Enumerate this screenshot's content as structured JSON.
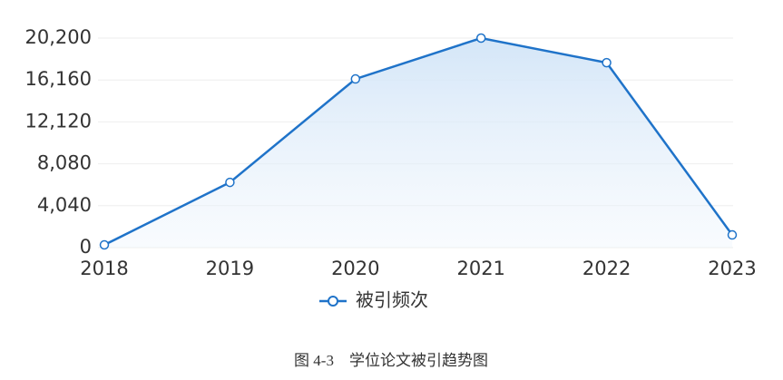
{
  "chart_data": {
    "type": "line",
    "categories": [
      "2018",
      "2019",
      "2020",
      "2021",
      "2022",
      "2023"
    ],
    "series": [
      {
        "name": "被引频次",
        "color": "#1f73c9",
        "values": [
          260,
          6290,
          16260,
          20200,
          17830,
          1220
        ]
      }
    ],
    "ylim": [
      0,
      20200
    ],
    "yticks": [
      0,
      {
        "value": 4040,
        "label": "4,040"
      },
      {
        "value": 8080,
        "label": "8,080"
      },
      {
        "value": 12120,
        "label": "12,120"
      },
      {
        "value": 16160,
        "label": "16,160"
      },
      {
        "value": 20200,
        "label": "20,200"
      }
    ],
    "grid": true,
    "area": true
  },
  "caption": "图 4‑3　学位论文被引趋势图"
}
